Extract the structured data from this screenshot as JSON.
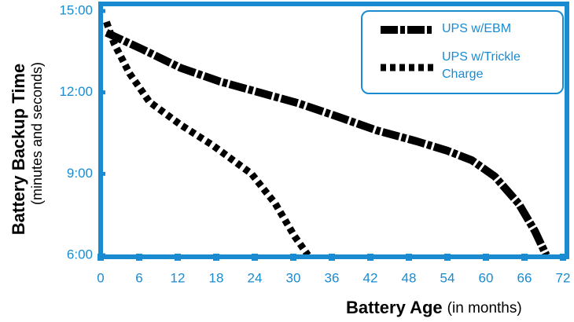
{
  "chart_data": {
    "type": "line",
    "x_label": "Battery Age",
    "x_label_note": "(in months)",
    "y_label": "Battery Backup Time",
    "y_label_note": "(minutes and seconds)",
    "xlim": [
      0,
      72
    ],
    "xticks": [
      0,
      6,
      12,
      18,
      24,
      30,
      36,
      42,
      48,
      54,
      60,
      66,
      72
    ],
    "ylim": [
      6,
      15
    ],
    "yticks": [
      {
        "value": 6,
        "label": "6:00"
      },
      {
        "value": 9,
        "label": "9:00"
      },
      {
        "value": 12,
        "label": "12:00"
      },
      {
        "value": 15,
        "label": "15:00"
      }
    ],
    "axis_color": "#1a8bd0",
    "series": [
      {
        "name": "UPS w/EBM",
        "color": "#000000",
        "linestyle": "dashdot",
        "x": [
          0.9,
          6.4,
          12.5,
          18.6,
          24.7,
          30.8,
          37,
          43,
          49.2,
          54,
          57.8,
          61.4,
          65.1,
          67.6,
          69.4
        ],
        "values": [
          14.2,
          13.6,
          12.9,
          12.4,
          12.0,
          11.6,
          11.1,
          10.6,
          10.2,
          9.85,
          9.5,
          8.9,
          7.9,
          6.9,
          6.0
        ]
      },
      {
        "name": "UPS w/Trickle Charge",
        "color": "#000000",
        "linestyle": "dotted",
        "x": [
          0.9,
          2.1,
          4.5,
          7.6,
          12.5,
          17.4,
          23.5,
          27.2,
          30.2,
          32.3
        ],
        "values": [
          14.6,
          13.8,
          12.7,
          11.65,
          10.8,
          10.06,
          9.0,
          7.9,
          6.7,
          6.0
        ]
      }
    ]
  }
}
